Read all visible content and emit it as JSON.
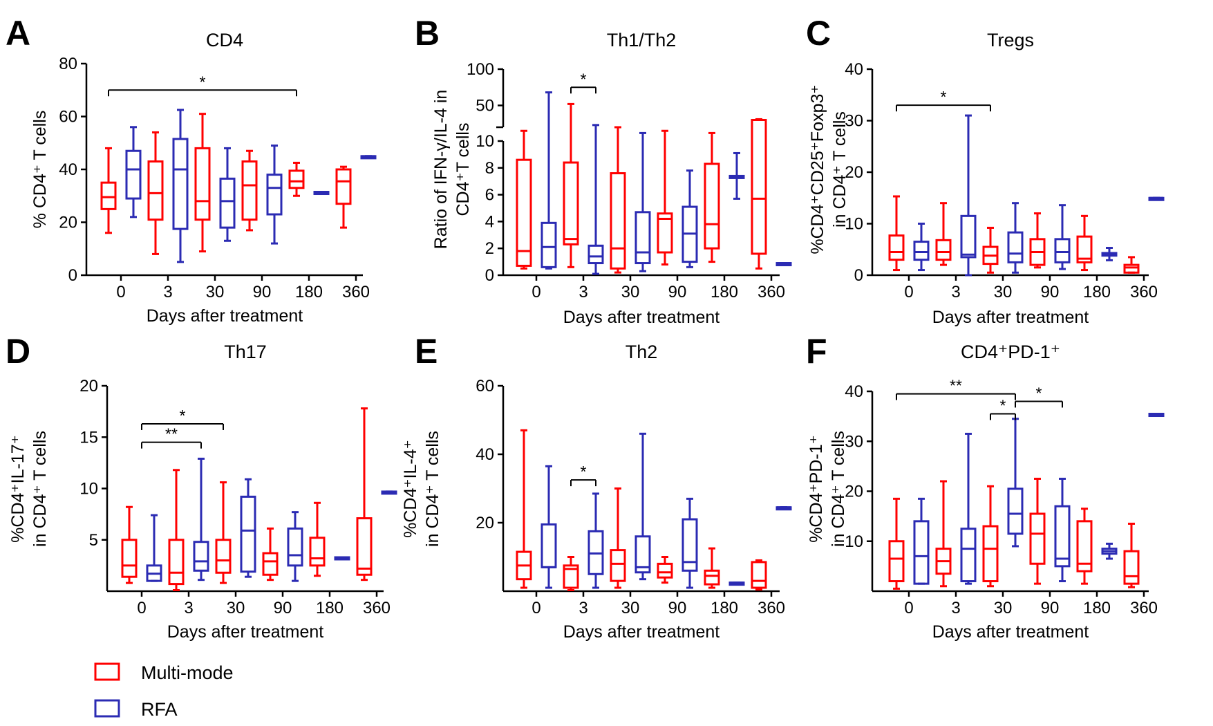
{
  "colors": {
    "multi": "#ff0000",
    "rfa": "#2b2bb3",
    "axis": "#000000"
  },
  "legend": [
    {
      "key": "multi",
      "label": "Multi-mode"
    },
    {
      "key": "rfa",
      "label": "RFA"
    }
  ],
  "chart_data": [
    {
      "id": "A",
      "letter": "A",
      "type": "box",
      "title": "CD4",
      "ylabel": [
        "% CD4⁺ T cells"
      ],
      "xlabel": "Days after treatment",
      "categories": [
        "0",
        "3",
        "30",
        "90",
        "180",
        "360"
      ],
      "ylim": [
        0,
        80
      ],
      "yticks": [
        0,
        20,
        40,
        60,
        80
      ],
      "series": [
        {
          "name": "Multi-mode",
          "boxes": [
            [
              16,
              25,
              29.5,
              35,
              48
            ],
            [
              8,
              21,
              31,
              43,
              54
            ],
            [
              9,
              21,
              28,
              48,
              61
            ],
            [
              17,
              21,
              34,
              43,
              47
            ],
            [
              30,
              33,
              35.5,
              39.5,
              42.5
            ],
            [
              18,
              27,
              35.5,
              40,
              41
            ]
          ]
        },
        {
          "name": "RFA",
          "boxes": [
            [
              22,
              29,
              40,
              47,
              56
            ],
            [
              5,
              17.5,
              40,
              51.5,
              62.5
            ],
            [
              13,
              18,
              28,
              36.5,
              48
            ],
            [
              12,
              23,
              33,
              38,
              49
            ],
            [
              31.5,
              31.5,
              31.5,
              31.5,
              31.5
            ],
            [
              45,
              45,
              45,
              45,
              45
            ]
          ]
        }
      ],
      "significance": [
        {
          "from": [
            0,
            "multi"
          ],
          "to": [
            4,
            "multi"
          ],
          "y": 70,
          "label": "*"
        }
      ]
    },
    {
      "id": "B",
      "letter": "B",
      "type": "box",
      "title": "Th1/Th2",
      "ylabel": [
        "Ratio of IFN-γ/IL-4 in",
        "CD4⁺T cells"
      ],
      "xlabel": "Days after treatment",
      "categories": [
        "0",
        "3",
        "30",
        "90",
        "180",
        "360"
      ],
      "ylim": [
        0,
        10
      ],
      "yticks": [
        0,
        2,
        4,
        6,
        8,
        10
      ],
      "upper_ylim": [
        20,
        100
      ],
      "upper_yticks": [
        50,
        100
      ],
      "series": [
        {
          "name": "Multi-mode",
          "boxes": [
            [
              0.5,
              0.7,
              1.8,
              8.6,
              15
            ],
            [
              0.6,
              2.3,
              2.7,
              8.4,
              52
            ],
            [
              0.2,
              0.5,
              2,
              7.6,
              20
            ],
            [
              0.8,
              1.7,
              4.2,
              4.6,
              15
            ],
            [
              1,
              2,
              3.8,
              8.3,
              12
            ],
            [
              0.5,
              1.6,
              5.7,
              30,
              31
            ]
          ]
        },
        {
          "name": "RFA",
          "boxes": [
            [
              0.5,
              0.6,
              2.1,
              3.9,
              68
            ],
            [
              0.1,
              0.9,
              1.4,
              2.2,
              23
            ],
            [
              0.3,
              0.9,
              1.7,
              4.7,
              12
            ],
            [
              0.6,
              1,
              3.1,
              5.1,
              7.8
            ],
            [
              5.7,
              7.3,
              7.3,
              7.4,
              9.1
            ],
            [
              0.9,
              0.9,
              0.9,
              0.9,
              0.9
            ]
          ]
        }
      ],
      "significance": [
        {
          "from": [
            1,
            "multi"
          ],
          "to": [
            1,
            "rfa"
          ],
          "y": 75,
          "label": "*",
          "upper": true
        }
      ]
    },
    {
      "id": "C",
      "letter": "C",
      "type": "box",
      "title": "Tregs",
      "ylabel": [
        "%CD4⁺CD25⁺Foxp3⁺",
        "in CD4⁺ T cells"
      ],
      "xlabel": "Days after treatment",
      "categories": [
        "0",
        "3",
        "30",
        "90",
        "180",
        "360"
      ],
      "ylim": [
        0,
        40
      ],
      "yticks": [
        0,
        10,
        20,
        30,
        40
      ],
      "series": [
        {
          "name": "Multi-mode",
          "boxes": [
            [
              1,
              3,
              4.5,
              7.7,
              15.3
            ],
            [
              2,
              3,
              4.5,
              6.8,
              14
            ],
            [
              0.5,
              2.2,
              3.8,
              5.5,
              9.2
            ],
            [
              1.5,
              2,
              4.5,
              7,
              12
            ],
            [
              1,
              2.5,
              3.2,
              7.5,
              11.5
            ],
            [
              0.5,
              0.5,
              1.5,
              2,
              3.5
            ]
          ]
        },
        {
          "name": "RFA",
          "boxes": [
            [
              1,
              3,
              4.5,
              6.5,
              10
            ],
            [
              0,
              3.5,
              4,
              11.5,
              31
            ],
            [
              0.5,
              2.5,
              4.2,
              8.3,
              14
            ],
            [
              1.2,
              2.5,
              4.5,
              7,
              13.6
            ],
            [
              2.9,
              3.8,
              4,
              4.3,
              5.3
            ],
            [
              15,
              15,
              15,
              15,
              15
            ]
          ]
        }
      ],
      "significance": [
        {
          "from": [
            0,
            "multi"
          ],
          "to": [
            2,
            "multi"
          ],
          "y": 33,
          "label": "*"
        }
      ]
    },
    {
      "id": "D",
      "letter": "D",
      "type": "box",
      "title": "Th17",
      "ylabel": [
        "%CD4⁺IL-17⁺",
        "in CD4⁺ T cells"
      ],
      "xlabel": "Days after treatment",
      "categories": [
        "0",
        "3",
        "30",
        "90",
        "180",
        "360"
      ],
      "ylim": [
        0,
        20
      ],
      "yticks": [
        5,
        10,
        15,
        20
      ],
      "series": [
        {
          "name": "Multi-mode",
          "boxes": [
            [
              0.8,
              1.4,
              2.5,
              5,
              8.2
            ],
            [
              0.1,
              0.7,
              1.8,
              5,
              11.8
            ],
            [
              0.8,
              1.8,
              3,
              5,
              10.6
            ],
            [
              1.1,
              1.6,
              2.9,
              3.7,
              6.1
            ],
            [
              1.5,
              2.5,
              3.2,
              5.2,
              8.6
            ],
            [
              1.1,
              1.6,
              2.2,
              7.1,
              17.8
            ]
          ]
        },
        {
          "name": "RFA",
          "boxes": [
            [
              1,
              1,
              1.7,
              2.5,
              7.4
            ],
            [
              1.1,
              2,
              2.9,
              4.8,
              12.9
            ],
            [
              1.4,
              1.9,
              5.9,
              9.2,
              10.9
            ],
            [
              1,
              2.5,
              3.5,
              6.1,
              7.7
            ],
            [
              3.3,
              3.3,
              3.3,
              3.3,
              3.3
            ],
            [
              9.7,
              9.7,
              9.7,
              9.7,
              9.7
            ]
          ]
        }
      ],
      "significance": [
        {
          "from": [
            0,
            "mid"
          ],
          "to": [
            1,
            "rfa"
          ],
          "y": 14.5,
          "label": "**"
        },
        {
          "from": [
            0,
            "mid"
          ],
          "to": [
            2,
            "multi"
          ],
          "y": 16.3,
          "label": "*"
        }
      ]
    },
    {
      "id": "E",
      "letter": "E",
      "type": "box",
      "title": "Th2",
      "ylabel": [
        "%CD4⁺IL-4⁺",
        "in CD4⁺ T cells"
      ],
      "xlabel": "Days after treatment",
      "categories": [
        "0",
        "3",
        "30",
        "90",
        "180",
        "360"
      ],
      "ylim": [
        0,
        60
      ],
      "yticks": [
        20,
        40,
        60
      ],
      "series": [
        {
          "name": "Multi-mode",
          "boxes": [
            [
              1,
              3.5,
              7.5,
              11.5,
              47
            ],
            [
              0.3,
              1,
              6.5,
              7.5,
              10
            ],
            [
              1,
              3,
              8,
              12,
              30
            ],
            [
              2.5,
              4,
              5.5,
              8,
              10
            ],
            [
              1,
              2,
              4.5,
              6,
              12.5
            ],
            [
              0.5,
              1,
              3,
              8.5,
              9
            ]
          ]
        },
        {
          "name": "RFA",
          "boxes": [
            [
              1,
              7,
              7,
              19.5,
              36.5
            ],
            [
              1,
              5,
              11,
              17.5,
              28.5
            ],
            [
              3.5,
              5.5,
              7,
              16,
              46
            ],
            [
              1,
              6,
              8.5,
              21,
              27
            ],
            [
              2.5,
              2.5,
              2.5,
              2.5,
              2.5
            ],
            [
              24.5,
              24.5,
              24.5,
              24.5,
              24.5
            ]
          ]
        }
      ],
      "significance": [
        {
          "from": [
            1,
            "multi"
          ],
          "to": [
            1,
            "rfa"
          ],
          "y": 32.5,
          "label": "*"
        }
      ]
    },
    {
      "id": "F",
      "letter": "F",
      "type": "box",
      "title": "CD4⁺PD-1⁺",
      "ylabel": [
        "%CD4⁺PD-1⁺",
        "in CD4⁺ T cells"
      ],
      "xlabel": "Days after treatment",
      "categories": [
        "0",
        "3",
        "30",
        "90",
        "180",
        "360"
      ],
      "ylim": [
        0,
        40
      ],
      "yticks": [
        10,
        20,
        30,
        40
      ],
      "series": [
        {
          "name": "Multi-mode",
          "boxes": [
            [
              0.5,
              2,
              6.5,
              10,
              18.5
            ],
            [
              1,
              3.5,
              6,
              8.5,
              22
            ],
            [
              1,
              2,
              8.5,
              13,
              21
            ],
            [
              1.5,
              5.5,
              11.5,
              15.5,
              22.5
            ],
            [
              1.5,
              4,
              5.5,
              14,
              16.5
            ],
            [
              0.8,
              1.5,
              3,
              8,
              13.5
            ]
          ]
        },
        {
          "name": "RFA",
          "boxes": [
            [
              1.5,
              1.5,
              7,
              14,
              18.5
            ],
            [
              1.5,
              2,
              8.5,
              12.5,
              31.5
            ],
            [
              9,
              11.5,
              15.5,
              20.5,
              34.5
            ],
            [
              2,
              5,
              6.5,
              17,
              22.5
            ],
            [
              6.5,
              7.5,
              8,
              8.5,
              9.5
            ],
            [
              35.5,
              35.5,
              35.5,
              35.5,
              35.5
            ]
          ]
        }
      ],
      "significance": [
        {
          "from": [
            0,
            "multi"
          ],
          "to": [
            2,
            "rfa"
          ],
          "y": 39.5,
          "label": "**"
        },
        {
          "from": [
            2,
            "multi"
          ],
          "to": [
            2,
            "rfa"
          ],
          "y": 35.5,
          "label": "*"
        },
        {
          "from": [
            2,
            "rfa"
          ],
          "to": [
            3,
            "rfa"
          ],
          "y": 38,
          "label": "*"
        }
      ]
    }
  ]
}
